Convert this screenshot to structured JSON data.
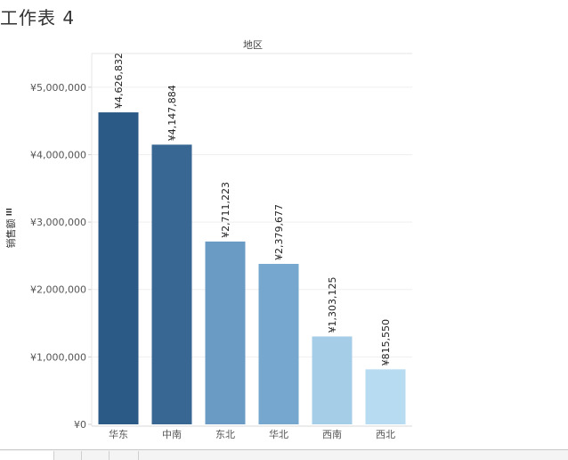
{
  "sheet_title": "工作表 4",
  "chart_data": {
    "type": "bar",
    "header": "地区",
    "ylabel": "销售额",
    "categories": [
      "华东",
      "中南",
      "东北",
      "华北",
      "西南",
      "西北"
    ],
    "values": [
      4626832,
      4147884,
      2711223,
      2379677,
      1303125,
      815550
    ],
    "value_labels": [
      "¥4,626,832",
      "¥4,147,884",
      "¥2,711,223",
      "¥2,379,677",
      "¥1,303,125",
      "¥815,550"
    ],
    "colors": [
      "#2b5a87",
      "#386793",
      "#6a9bc4",
      "#76a8cf",
      "#a6cde8",
      "#b7dcf1"
    ],
    "yticks": [
      0,
      1000000,
      2000000,
      3000000,
      4000000,
      5000000
    ],
    "ytick_labels": [
      "¥0",
      "¥1,000,000",
      "¥2,000,000",
      "¥3,000,000",
      "¥4,000,000",
      "¥5,000,000"
    ],
    "ylim": [
      0,
      5500000
    ],
    "grid": true
  }
}
